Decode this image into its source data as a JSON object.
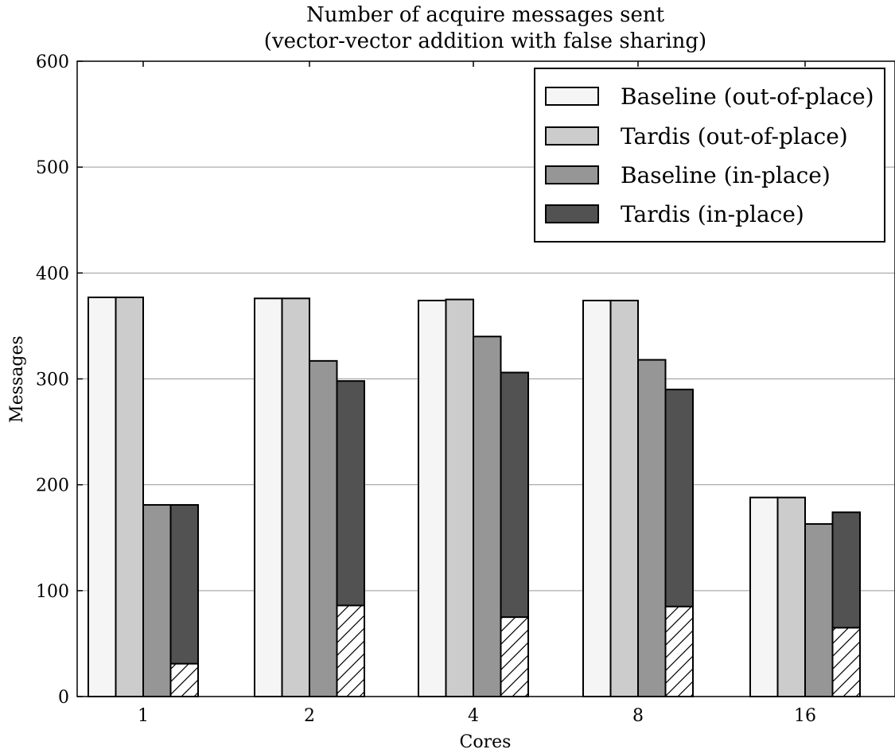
{
  "chart_data": {
    "type": "bar",
    "title": "Number of acquire messages sent",
    "subtitle": "(vector-vector addition with false sharing)",
    "xlabel": "Cores",
    "ylabel": "Messages",
    "categories": [
      "1",
      "2",
      "4",
      "8",
      "16"
    ],
    "ylim": [
      0,
      600
    ],
    "yticks": [
      0,
      100,
      200,
      300,
      400,
      500,
      600
    ],
    "grid": true,
    "legend_position": "top-right",
    "series": [
      {
        "name": "Baseline (out-of-place)",
        "color": "#f5f5f5",
        "values": [
          377,
          376,
          374,
          374,
          188
        ]
      },
      {
        "name": "Tardis (out-of-place)",
        "color": "#cccccc",
        "values": [
          377,
          376,
          375,
          374,
          188
        ]
      },
      {
        "name": "Baseline (in-place)",
        "color": "#969696",
        "values": [
          181,
          317,
          340,
          318,
          163
        ]
      },
      {
        "name": "Tardis (in-place)",
        "color": "#525252",
        "values": [
          181,
          298,
          306,
          290,
          174
        ],
        "hatched_portion": [
          31,
          86,
          75,
          85,
          65
        ]
      }
    ]
  }
}
